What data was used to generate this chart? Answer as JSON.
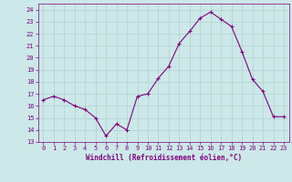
{
  "x": [
    0,
    1,
    2,
    3,
    4,
    5,
    6,
    7,
    8,
    9,
    10,
    11,
    12,
    13,
    14,
    15,
    16,
    17,
    18,
    19,
    20,
    21,
    22,
    23
  ],
  "y": [
    16.5,
    16.8,
    16.5,
    16.0,
    15.7,
    15.0,
    13.5,
    14.5,
    14.0,
    16.8,
    17.0,
    18.3,
    19.3,
    21.2,
    22.2,
    23.3,
    23.8,
    23.2,
    22.6,
    20.5,
    18.2,
    17.2,
    15.1,
    15.1
  ],
  "line_color": "#800080",
  "marker": "+",
  "marker_size": 4,
  "bg_color": "#cce8e8",
  "grid_color": "#b0d0d0",
  "xlabel": "Windchill (Refroidissement éolien,°C)",
  "xlabel_color": "#800080",
  "tick_color": "#800080",
  "ylim": [
    13,
    24.5
  ],
  "xlim": [
    -0.5,
    23.5
  ],
  "yticks": [
    13,
    14,
    15,
    16,
    17,
    18,
    19,
    20,
    21,
    22,
    23,
    24
  ],
  "xticks": [
    0,
    1,
    2,
    3,
    4,
    5,
    6,
    7,
    8,
    9,
    10,
    11,
    12,
    13,
    14,
    15,
    16,
    17,
    18,
    19,
    20,
    21,
    22,
    23
  ]
}
